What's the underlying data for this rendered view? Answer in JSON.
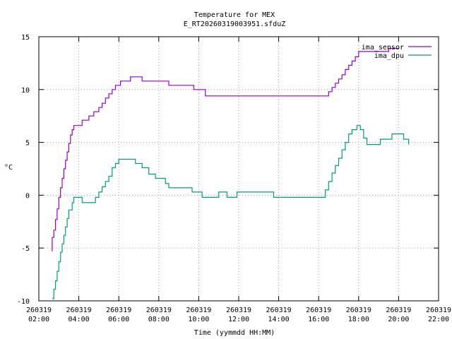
{
  "chart_data": {
    "type": "line",
    "title": "Temperature for MEX",
    "subtitle": "E_RT20260319003951.sfduZ",
    "xlabel": "Time (yymmdd HH:MM)",
    "ylabel": "°C",
    "ylim": [
      -10,
      15
    ],
    "yticks": [
      -10,
      -5,
      0,
      5,
      10,
      15
    ],
    "ytick_labels": [
      "-10",
      "-5",
      "0",
      "5",
      "10",
      "15"
    ],
    "xlim": [
      "2026-03-19 02:00",
      "2026-03-19 22:00"
    ],
    "xticks": [
      {
        "date": "260319",
        "time": "02:00"
      },
      {
        "date": "260319",
        "time": "04:00"
      },
      {
        "date": "260319",
        "time": "06:00"
      },
      {
        "date": "260319",
        "time": "08:00"
      },
      {
        "date": "260319",
        "time": "10:00"
      },
      {
        "date": "260319",
        "time": "12:00"
      },
      {
        "date": "260319",
        "time": "14:00"
      },
      {
        "date": "260319",
        "time": "16:00"
      },
      {
        "date": "260319",
        "time": "18:00"
      },
      {
        "date": "260319",
        "time": "20:00"
      },
      {
        "date": "260319",
        "time": "22:00"
      }
    ],
    "grid": true,
    "legend_position": "top-right",
    "series": [
      {
        "name": "ima_sensor",
        "color": "#9400d3",
        "points": [
          [
            "02:40",
            -5.3
          ],
          [
            "02:40",
            -4.0
          ],
          [
            "02:45",
            -3.3
          ],
          [
            "02:50",
            -2.3
          ],
          [
            "02:55",
            -1.3
          ],
          [
            "03:00",
            -0.2
          ],
          [
            "03:05",
            0.7
          ],
          [
            "03:10",
            1.6
          ],
          [
            "03:15",
            2.5
          ],
          [
            "03:20",
            3.3
          ],
          [
            "03:25",
            4.1
          ],
          [
            "03:30",
            4.9
          ],
          [
            "03:35",
            5.7
          ],
          [
            "03:40",
            6.2
          ],
          [
            "03:45",
            6.6
          ],
          [
            "04:00",
            6.6
          ],
          [
            "04:10",
            7.1
          ],
          [
            "04:30",
            7.1
          ],
          [
            "04:30",
            7.5
          ],
          [
            "04:45",
            7.9
          ],
          [
            "05:00",
            8.3
          ],
          [
            "05:10",
            8.7
          ],
          [
            "05:20",
            9.2
          ],
          [
            "05:30",
            9.6
          ],
          [
            "05:40",
            10.0
          ],
          [
            "05:50",
            10.4
          ],
          [
            "06:05",
            10.8
          ],
          [
            "06:35",
            10.8
          ],
          [
            "06:35",
            11.2
          ],
          [
            "07:10",
            11.2
          ],
          [
            "07:10",
            10.8
          ],
          [
            "08:30",
            10.8
          ],
          [
            "08:30",
            10.4
          ],
          [
            "09:45",
            10.4
          ],
          [
            "09:45",
            10.0
          ],
          [
            "10:20",
            10.0
          ],
          [
            "10:20",
            9.4
          ],
          [
            "16:20",
            9.4
          ],
          [
            "16:30",
            9.8
          ],
          [
            "16:40",
            10.2
          ],
          [
            "16:50",
            10.6
          ],
          [
            "17:00",
            11.0
          ],
          [
            "17:10",
            11.4
          ],
          [
            "17:20",
            11.9
          ],
          [
            "17:30",
            12.3
          ],
          [
            "17:40",
            12.7
          ],
          [
            "17:50",
            13.1
          ],
          [
            "18:00",
            13.6
          ],
          [
            "19:30",
            13.6
          ],
          [
            "19:30",
            13.9
          ],
          [
            "20:00",
            13.9
          ]
        ]
      },
      {
        "name": "ima_dpu",
        "color": "#009e73",
        "points": [
          [
            "02:40",
            -9.8
          ],
          [
            "02:45",
            -8.9
          ],
          [
            "02:50",
            -8.1
          ],
          [
            "02:55",
            -7.2
          ],
          [
            "03:00",
            -6.3
          ],
          [
            "03:05",
            -5.4
          ],
          [
            "03:10",
            -4.6
          ],
          [
            "03:15",
            -3.8
          ],
          [
            "03:20",
            -3.0
          ],
          [
            "03:25",
            -2.2
          ],
          [
            "03:30",
            -1.4
          ],
          [
            "03:40",
            -0.7
          ],
          [
            "03:45",
            -0.2
          ],
          [
            "04:10",
            -0.2
          ],
          [
            "04:10",
            -0.7
          ],
          [
            "04:40",
            -0.7
          ],
          [
            "04:50",
            -0.2
          ],
          [
            "05:00",
            0.3
          ],
          [
            "05:10",
            0.8
          ],
          [
            "05:20",
            1.3
          ],
          [
            "05:30",
            1.8
          ],
          [
            "05:40",
            2.6
          ],
          [
            "05:50",
            3.0
          ],
          [
            "06:00",
            3.4
          ],
          [
            "06:50",
            3.4
          ],
          [
            "06:50",
            3.0
          ],
          [
            "07:10",
            2.6
          ],
          [
            "07:30",
            2.0
          ],
          [
            "07:50",
            1.6
          ],
          [
            "08:20",
            1.1
          ],
          [
            "08:30",
            0.7
          ],
          [
            "09:40",
            0.7
          ],
          [
            "09:40",
            0.3
          ],
          [
            "10:10",
            0.3
          ],
          [
            "10:10",
            -0.2
          ],
          [
            "11:00",
            -0.2
          ],
          [
            "11:00",
            0.3
          ],
          [
            "11:25",
            0.3
          ],
          [
            "11:25",
            -0.2
          ],
          [
            "11:55",
            -0.2
          ],
          [
            "11:55",
            0.3
          ],
          [
            "13:45",
            0.3
          ],
          [
            "13:45",
            -0.2
          ],
          [
            "16:10",
            -0.2
          ],
          [
            "16:20",
            0.5
          ],
          [
            "16:30",
            1.3
          ],
          [
            "16:40",
            2.1
          ],
          [
            "16:50",
            2.8
          ],
          [
            "17:00",
            3.5
          ],
          [
            "17:10",
            4.3
          ],
          [
            "17:20",
            5.0
          ],
          [
            "17:30",
            5.8
          ],
          [
            "17:40",
            6.2
          ],
          [
            "17:55",
            6.6
          ],
          [
            "18:05",
            6.2
          ],
          [
            "18:15",
            5.4
          ],
          [
            "18:25",
            4.8
          ],
          [
            "19:05",
            4.8
          ],
          [
            "19:05",
            5.3
          ],
          [
            "19:40",
            5.3
          ],
          [
            "19:40",
            5.8
          ],
          [
            "20:15",
            5.8
          ],
          [
            "20:15",
            5.3
          ],
          [
            "20:30",
            4.8
          ]
        ]
      }
    ]
  }
}
